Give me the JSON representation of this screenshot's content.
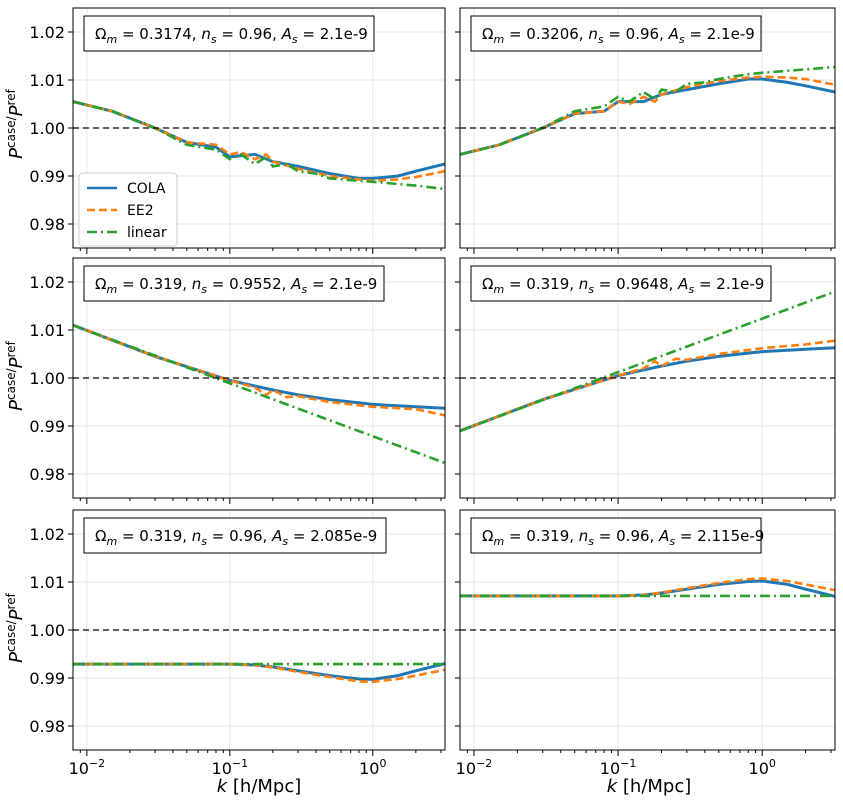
{
  "figure": {
    "ylabel_main": "P",
    "ylabel_sup": "case/",
    "ylabel_main2": "P",
    "ylabel_sup2": "ref",
    "xlabel_k": "k",
    "xlabel_rest": " [h/Mpc]",
    "legend": [
      {
        "label": "COLA",
        "color": "#1f77b4",
        "style": "solid"
      },
      {
        "label": "EE2",
        "color": "#ff7f0e",
        "style": "dashed"
      },
      {
        "label": "linear",
        "color": "#2ca02c",
        "style": "dashdot"
      }
    ],
    "yticks": [
      "0.98",
      "0.99",
      "1.00",
      "1.01",
      "1.02"
    ],
    "xticks_base": [
      "10",
      "10",
      "10"
    ],
    "xticks_exp": [
      "−2",
      "−1",
      "0"
    ]
  },
  "chart_data": [
    {
      "type": "line",
      "title": "Ωm = 0.3174, ns = 0.96, As = 2.1e-9",
      "x_scale": "log",
      "xlim": [
        0.008,
        3.2
      ],
      "ylim": [
        0.975,
        1.025
      ],
      "xlabel": "k [h/Mpc]",
      "ylabel": "P^case/P^ref",
      "grid": true,
      "legend": "center-left",
      "series": [
        {
          "name": "COLA",
          "x": [
            0.008,
            0.015,
            0.03,
            0.05,
            0.08,
            0.1,
            0.15,
            0.2,
            0.3,
            0.5,
            0.8,
            1.0,
            1.5,
            2.0,
            3.2
          ],
          "y": [
            1.0055,
            1.0035,
            1.0,
            0.997,
            0.996,
            0.994,
            0.9945,
            0.993,
            0.992,
            0.9905,
            0.9895,
            0.9895,
            0.99,
            0.991,
            0.9925
          ]
        },
        {
          "name": "EE2",
          "x": [
            0.008,
            0.015,
            0.03,
            0.05,
            0.08,
            0.1,
            0.12,
            0.15,
            0.18,
            0.2,
            0.3,
            0.5,
            0.8,
            1.0,
            1.5,
            2.0,
            3.2
          ],
          "y": [
            1.0055,
            1.0035,
            1.0,
            0.997,
            0.9965,
            0.9945,
            0.995,
            0.9935,
            0.9945,
            0.993,
            0.9915,
            0.99,
            0.9893,
            0.989,
            0.9893,
            0.9898,
            0.991
          ]
        },
        {
          "name": "linear",
          "x": [
            0.008,
            0.015,
            0.03,
            0.05,
            0.08,
            0.1,
            0.12,
            0.15,
            0.18,
            0.2,
            0.25,
            0.3,
            0.4,
            0.5,
            0.8,
            1.0,
            2.0,
            3.2
          ],
          "y": [
            1.0055,
            1.0035,
            1.0,
            0.9965,
            0.9955,
            0.9935,
            0.9945,
            0.9925,
            0.994,
            0.992,
            0.9925,
            0.991,
            0.9905,
            0.9895,
            0.989,
            0.9888,
            0.988,
            0.9873
          ]
        },
        {
          "name": "reference",
          "x": [
            0.008,
            3.2
          ],
          "y": [
            1.0,
            1.0
          ]
        }
      ]
    },
    {
      "type": "line",
      "title": "Ωm = 0.3206, ns = 0.96, As = 2.1e-9",
      "x_scale": "log",
      "xlim": [
        0.008,
        3.2
      ],
      "ylim": [
        0.975,
        1.025
      ],
      "xlabel": "k [h/Mpc]",
      "ylabel": "P^case/P^ref",
      "grid": true,
      "series": [
        {
          "name": "COLA",
          "x": [
            0.008,
            0.015,
            0.03,
            0.05,
            0.08,
            0.1,
            0.15,
            0.2,
            0.3,
            0.5,
            0.8,
            1.0,
            1.5,
            2.0,
            3.2
          ],
          "y": [
            0.9945,
            0.9965,
            1.0,
            1.003,
            1.0035,
            1.0055,
            1.0055,
            1.007,
            1.008,
            1.0092,
            1.0102,
            1.0102,
            1.0095,
            1.0088,
            1.0075
          ]
        },
        {
          "name": "EE2",
          "x": [
            0.008,
            0.015,
            0.03,
            0.05,
            0.08,
            0.1,
            0.12,
            0.15,
            0.18,
            0.2,
            0.3,
            0.5,
            0.8,
            1.0,
            1.5,
            2.0,
            3.2
          ],
          "y": [
            0.9945,
            0.9965,
            1.0,
            1.003,
            1.0035,
            1.0055,
            1.005,
            1.0065,
            1.0055,
            1.007,
            1.0085,
            1.0098,
            1.0105,
            1.0107,
            1.0105,
            1.0102,
            1.009
          ]
        },
        {
          "name": "linear",
          "x": [
            0.008,
            0.015,
            0.03,
            0.05,
            0.08,
            0.1,
            0.12,
            0.15,
            0.18,
            0.2,
            0.25,
            0.3,
            0.4,
            0.5,
            0.8,
            1.0,
            2.0,
            3.2
          ],
          "y": [
            0.9945,
            0.9965,
            1.0,
            1.0035,
            1.0045,
            1.0065,
            1.0055,
            1.0075,
            1.006,
            1.008,
            1.0075,
            1.0092,
            1.0095,
            1.0102,
            1.0112,
            1.0115,
            1.0122,
            1.0127
          ]
        },
        {
          "name": "reference",
          "x": [
            0.008,
            3.2
          ],
          "y": [
            1.0,
            1.0
          ]
        }
      ]
    },
    {
      "type": "line",
      "title": "Ωm = 0.319, ns = 0.9552, As = 2.1e-9",
      "x_scale": "log",
      "xlim": [
        0.008,
        3.2
      ],
      "ylim": [
        0.975,
        1.025
      ],
      "xlabel": "k [h/Mpc]",
      "ylabel": "P^case/P^ref",
      "grid": true,
      "series": [
        {
          "name": "COLA",
          "x": [
            0.008,
            0.03,
            0.1,
            0.2,
            0.3,
            0.5,
            1.0,
            2.0,
            3.2
          ],
          "y": [
            1.011,
            1.0045,
            0.9995,
            0.9975,
            0.9965,
            0.9955,
            0.9945,
            0.994,
            0.9937
          ]
        },
        {
          "name": "EE2",
          "x": [
            0.008,
            0.03,
            0.1,
            0.15,
            0.18,
            0.2,
            0.25,
            0.3,
            0.5,
            1.0,
            2.0,
            3.2
          ],
          "y": [
            1.011,
            1.0045,
            0.9995,
            0.998,
            0.9965,
            0.9975,
            0.996,
            0.9962,
            0.995,
            0.994,
            0.9935,
            0.9922
          ]
        },
        {
          "name": "linear",
          "x": [
            0.008,
            3.2
          ],
          "y": [
            1.011,
            0.9823
          ]
        },
        {
          "name": "reference",
          "x": [
            0.008,
            3.2
          ],
          "y": [
            1.0,
            1.0
          ]
        }
      ]
    },
    {
      "type": "line",
      "title": "Ωm = 0.319, ns = 0.9648, As = 2.1e-9",
      "x_scale": "log",
      "xlim": [
        0.008,
        3.2
      ],
      "ylim": [
        0.975,
        1.025
      ],
      "xlabel": "k [h/Mpc]",
      "ylabel": "P^case/P^ref",
      "grid": true,
      "series": [
        {
          "name": "COLA",
          "x": [
            0.008,
            0.03,
            0.1,
            0.2,
            0.3,
            0.5,
            1.0,
            2.0,
            3.2
          ],
          "y": [
            0.989,
            0.9955,
            1.0005,
            1.0025,
            1.0035,
            1.0045,
            1.0055,
            1.006,
            1.0063
          ]
        },
        {
          "name": "EE2",
          "x": [
            0.008,
            0.03,
            0.1,
            0.15,
            0.18,
            0.2,
            0.25,
            0.3,
            0.5,
            1.0,
            2.0,
            3.2
          ],
          "y": [
            0.989,
            0.9955,
            1.0005,
            1.002,
            1.0035,
            1.0025,
            1.004,
            1.0038,
            1.005,
            1.0062,
            1.007,
            1.0078
          ]
        },
        {
          "name": "linear",
          "x": [
            0.008,
            3.2
          ],
          "y": [
            0.989,
            1.018
          ]
        },
        {
          "name": "reference",
          "x": [
            0.008,
            3.2
          ],
          "y": [
            1.0,
            1.0
          ]
        }
      ]
    },
    {
      "type": "line",
      "title": "Ωm = 0.319, ns = 0.96, As = 2.085e-9",
      "x_scale": "log",
      "xlim": [
        0.008,
        3.2
      ],
      "ylim": [
        0.975,
        1.025
      ],
      "xlabel": "k [h/Mpc]",
      "ylabel": "P^case/P^ref",
      "grid": true,
      "series": [
        {
          "name": "COLA",
          "x": [
            0.008,
            0.05,
            0.1,
            0.15,
            0.2,
            0.3,
            0.5,
            0.8,
            1.0,
            1.5,
            2.0,
            3.2
          ],
          "y": [
            0.9929,
            0.9929,
            0.9929,
            0.9927,
            0.9923,
            0.9915,
            0.9905,
            0.9898,
            0.9897,
            0.9905,
            0.9915,
            0.993
          ]
        },
        {
          "name": "EE2",
          "x": [
            0.008,
            0.05,
            0.1,
            0.15,
            0.2,
            0.3,
            0.5,
            0.8,
            1.0,
            1.5,
            2.0,
            3.2
          ],
          "y": [
            0.9929,
            0.9929,
            0.9929,
            0.9927,
            0.9922,
            0.9913,
            0.9902,
            0.9893,
            0.9892,
            0.9898,
            0.9905,
            0.9917
          ]
        },
        {
          "name": "linear",
          "x": [
            0.008,
            3.2
          ],
          "y": [
            0.9929,
            0.9929
          ]
        },
        {
          "name": "reference",
          "x": [
            0.008,
            3.2
          ],
          "y": [
            1.0,
            1.0
          ]
        }
      ]
    },
    {
      "type": "line",
      "title": "Ωm = 0.319, ns = 0.96, As = 2.115e-9",
      "x_scale": "log",
      "xlim": [
        0.008,
        3.2
      ],
      "ylim": [
        0.975,
        1.025
      ],
      "xlabel": "k [h/Mpc]",
      "ylabel": "P^case/P^ref",
      "grid": true,
      "series": [
        {
          "name": "COLA",
          "x": [
            0.008,
            0.05,
            0.1,
            0.15,
            0.2,
            0.3,
            0.5,
            0.8,
            1.0,
            1.5,
            2.0,
            3.2
          ],
          "y": [
            1.0071,
            1.0071,
            1.0071,
            1.0073,
            1.0077,
            1.0085,
            1.0095,
            1.0101,
            1.0102,
            1.0095,
            1.0085,
            1.007
          ]
        },
        {
          "name": "EE2",
          "x": [
            0.008,
            0.05,
            0.1,
            0.15,
            0.2,
            0.3,
            0.5,
            0.8,
            1.0,
            1.5,
            2.0,
            3.2
          ],
          "y": [
            1.0071,
            1.0071,
            1.0071,
            1.0073,
            1.0078,
            1.0087,
            1.0098,
            1.0106,
            1.0107,
            1.0102,
            1.0095,
            1.0083
          ]
        },
        {
          "name": "linear",
          "x": [
            0.008,
            3.2
          ],
          "y": [
            1.0071,
            1.0071
          ]
        },
        {
          "name": "reference",
          "x": [
            0.008,
            3.2
          ],
          "y": [
            1.0,
            1.0
          ]
        }
      ]
    }
  ]
}
